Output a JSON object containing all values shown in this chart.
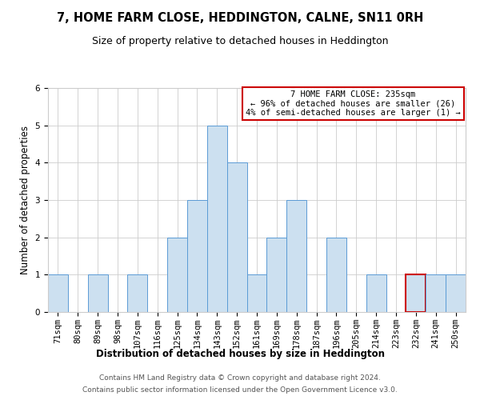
{
  "title": "7, HOME FARM CLOSE, HEDDINGTON, CALNE, SN11 0RH",
  "subtitle": "Size of property relative to detached houses in Heddington",
  "xlabel": "Distribution of detached houses by size in Heddington",
  "ylabel": "Number of detached properties",
  "categories": [
    "71sqm",
    "80sqm",
    "89sqm",
    "98sqm",
    "107sqm",
    "116sqm",
    "125sqm",
    "134sqm",
    "143sqm",
    "152sqm",
    "161sqm",
    "169sqm",
    "178sqm",
    "187sqm",
    "196sqm",
    "205sqm",
    "214sqm",
    "223sqm",
    "232sqm",
    "241sqm",
    "250sqm"
  ],
  "values": [
    1,
    0,
    1,
    0,
    1,
    0,
    2,
    3,
    5,
    4,
    1,
    2,
    3,
    0,
    2,
    0,
    1,
    0,
    1,
    1,
    1
  ],
  "bar_color": "#cce0f0",
  "bar_edge_color": "#5b9bd5",
  "highlight_bar_index": 18,
  "highlight_bar_edge_color": "#cc0000",
  "annotation_text": "7 HOME FARM CLOSE: 235sqm\n← 96% of detached houses are smaller (26)\n4% of semi-detached houses are larger (1) →",
  "annotation_box_edge_color": "#cc0000",
  "ylim": [
    0,
    6
  ],
  "yticks": [
    0,
    1,
    2,
    3,
    4,
    5,
    6
  ],
  "footer_line1": "Contains HM Land Registry data © Crown copyright and database right 2024.",
  "footer_line2": "Contains public sector information licensed under the Open Government Licence v3.0.",
  "bg_color": "#ffffff",
  "grid_color": "#cccccc",
  "title_fontsize": 10.5,
  "subtitle_fontsize": 9,
  "axis_label_fontsize": 8.5,
  "tick_fontsize": 7.5,
  "annotation_fontsize": 7.5,
  "footer_fontsize": 6.5
}
